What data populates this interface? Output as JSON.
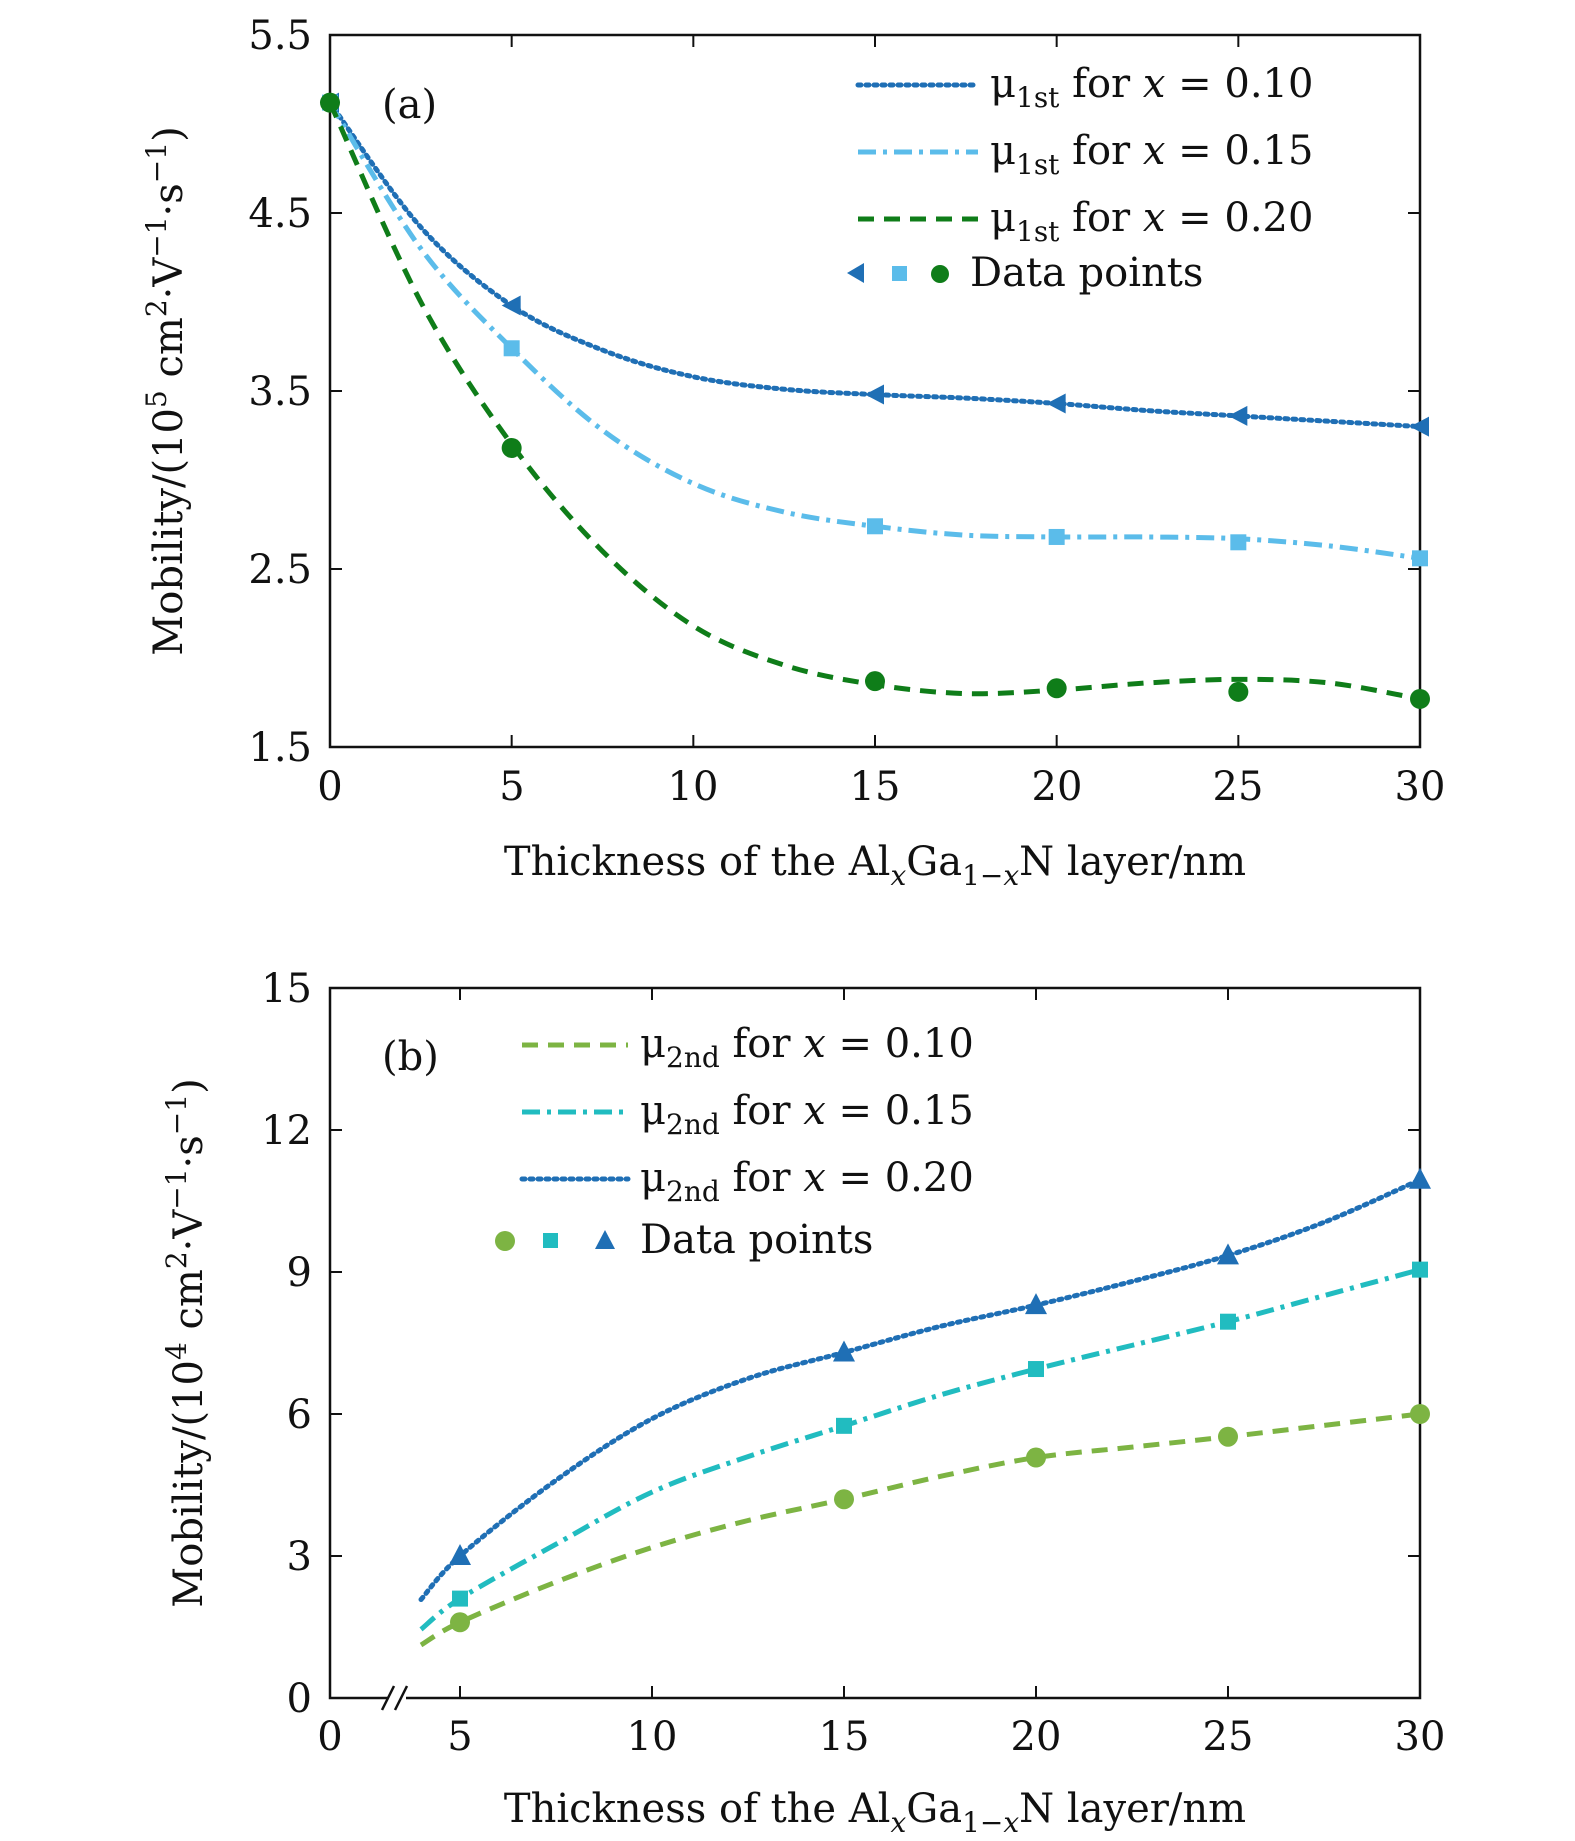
{
  "figure": {
    "colors": {
      "dark_blue": "#1f6fb5",
      "light_blue": "#5bbcea",
      "dark_green": "#0f7d19",
      "olive_green": "#7db443",
      "teal": "#21bcc0",
      "axis": "#111111"
    }
  },
  "chart_data": [
    {
      "type": "line",
      "panel_label": "(a)",
      "xlabel": "Thickness of the AlxGa1−xN layer/nm",
      "ylabel": "Mobility/(105 cm2·V−1·s−1)",
      "xlim": [
        0,
        30
      ],
      "ylim": [
        1.5,
        5.5
      ],
      "xticks": [
        0,
        5,
        10,
        15,
        20,
        25,
        30
      ],
      "xtick_labels": [
        "0",
        "5",
        "10",
        "15",
        "20",
        "25",
        "30"
      ],
      "yticks": [
        1.5,
        2.5,
        3.5,
        4.5,
        5.5
      ],
      "ytick_labels": [
        "1.5",
        "2.5",
        "3.5",
        "4.5",
        "5.5"
      ],
      "grid": false,
      "legend_position": "top-right",
      "legend_marker_label": "Data points",
      "series": [
        {
          "name": "μ1st for x = 0.10",
          "color": "#1f6fb5",
          "line_style": "dotted",
          "marker": "triangle-left",
          "points": [
            [
              0,
              5.12
            ],
            [
              5,
              3.98
            ],
            [
              15,
              3.48
            ],
            [
              20,
              3.43
            ],
            [
              25,
              3.36
            ],
            [
              30,
              3.3
            ]
          ],
          "curve": [
            [
              0,
              5.12
            ],
            [
              2.5,
              4.42
            ],
            [
              5,
              3.98
            ],
            [
              7.5,
              3.73
            ],
            [
              10,
              3.58
            ],
            [
              12.5,
              3.51
            ],
            [
              15,
              3.48
            ],
            [
              17.5,
              3.46
            ],
            [
              20,
              3.43
            ],
            [
              22.5,
              3.39
            ],
            [
              25,
              3.36
            ],
            [
              27.5,
              3.33
            ],
            [
              30,
              3.3
            ]
          ]
        },
        {
          "name": "μ1st for x = 0.15",
          "color": "#5bbcea",
          "line_style": "dash-dot",
          "marker": "square",
          "points": [
            [
              0,
              5.12
            ],
            [
              5,
              3.74
            ],
            [
              15,
              2.74
            ],
            [
              20,
              2.68
            ],
            [
              25,
              2.65
            ],
            [
              30,
              2.56
            ]
          ],
          "curve": [
            [
              0,
              5.12
            ],
            [
              2.5,
              4.3
            ],
            [
              5,
              3.74
            ],
            [
              7.5,
              3.28
            ],
            [
              10,
              2.98
            ],
            [
              12.5,
              2.82
            ],
            [
              15,
              2.74
            ],
            [
              17.5,
              2.69
            ],
            [
              20,
              2.68
            ],
            [
              22.5,
              2.68
            ],
            [
              25,
              2.67
            ],
            [
              27.5,
              2.63
            ],
            [
              30,
              2.56
            ]
          ]
        },
        {
          "name": "μ1st for x = 0.20",
          "color": "#0f7d19",
          "line_style": "dashed",
          "marker": "circle",
          "points": [
            [
              0,
              5.12
            ],
            [
              5,
              3.18
            ],
            [
              15,
              1.87
            ],
            [
              20,
              1.83
            ],
            [
              25,
              1.81
            ],
            [
              30,
              1.77
            ]
          ],
          "curve": [
            [
              0,
              5.12
            ],
            [
              2.5,
              4.0
            ],
            [
              5,
              3.2
            ],
            [
              7.5,
              2.6
            ],
            [
              10,
              2.18
            ],
            [
              12.5,
              1.96
            ],
            [
              15,
              1.85
            ],
            [
              17.5,
              1.8
            ],
            [
              20,
              1.82
            ],
            [
              22.5,
              1.86
            ],
            [
              25,
              1.88
            ],
            [
              27.5,
              1.86
            ],
            [
              30,
              1.77
            ]
          ]
        }
      ]
    },
    {
      "type": "line",
      "panel_label": "(b)",
      "xlabel": "Thickness of the AlxGa1−xN layer/nm",
      "ylabel": "Mobility/(104 cm2·V−1·s−1)",
      "xlim": [
        0,
        30
      ],
      "ylim": [
        0,
        15
      ],
      "axis_break": true,
      "xticks": [
        0,
        5,
        10,
        15,
        20,
        25,
        30
      ],
      "xtick_labels": [
        "0",
        "5",
        "10",
        "15",
        "20",
        "25",
        "30"
      ],
      "yticks": [
        0,
        3,
        6,
        9,
        12,
        15
      ],
      "ytick_labels": [
        "0",
        "3",
        "6",
        "9",
        "12",
        "15"
      ],
      "grid": false,
      "legend_position": "top-left",
      "legend_marker_label": "Data points",
      "series": [
        {
          "name": "μ2nd for x = 0.10",
          "color": "#7db443",
          "line_style": "dashed",
          "marker": "circle",
          "points": [
            [
              5,
              1.6
            ],
            [
              15,
              4.2
            ],
            [
              20,
              5.08
            ],
            [
              25,
              5.52
            ],
            [
              30,
              6.0
            ]
          ],
          "curve": [
            [
              3.5,
              1.12
            ],
            [
              5,
              1.6
            ],
            [
              7.5,
              2.45
            ],
            [
              10,
              3.18
            ],
            [
              12.5,
              3.75
            ],
            [
              15,
              4.2
            ],
            [
              17.5,
              4.68
            ],
            [
              20,
              5.08
            ],
            [
              22.5,
              5.3
            ],
            [
              25,
              5.52
            ],
            [
              27.5,
              5.76
            ],
            [
              30,
              6.0
            ]
          ]
        },
        {
          "name": "μ2nd for x = 0.15",
          "color": "#21bcc0",
          "line_style": "dash-dot",
          "marker": "square",
          "points": [
            [
              5,
              2.1
            ],
            [
              15,
              5.75
            ],
            [
              20,
              6.95
            ],
            [
              25,
              7.95
            ],
            [
              30,
              9.05
            ]
          ],
          "curve": [
            [
              3.5,
              1.45
            ],
            [
              5,
              2.1
            ],
            [
              7.5,
              3.25
            ],
            [
              10,
              4.35
            ],
            [
              12.5,
              5.1
            ],
            [
              15,
              5.75
            ],
            [
              17.5,
              6.4
            ],
            [
              20,
              6.95
            ],
            [
              22.5,
              7.45
            ],
            [
              25,
              7.95
            ],
            [
              27.5,
              8.5
            ],
            [
              30,
              9.05
            ]
          ]
        },
        {
          "name": "μ2nd for x = 0.20",
          "color": "#1f6fb5",
          "line_style": "dotted",
          "marker": "triangle-up",
          "points": [
            [
              5,
              3.0
            ],
            [
              15,
              7.3
            ],
            [
              20,
              8.3
            ],
            [
              25,
              9.35
            ],
            [
              30,
              10.95
            ]
          ],
          "curve": [
            [
              3.5,
              2.08
            ],
            [
              5,
              3.0
            ],
            [
              7.5,
              4.6
            ],
            [
              10,
              5.9
            ],
            [
              12.5,
              6.75
            ],
            [
              15,
              7.3
            ],
            [
              17.5,
              7.85
            ],
            [
              20,
              8.3
            ],
            [
              22.5,
              8.8
            ],
            [
              25,
              9.35
            ],
            [
              27.5,
              10.05
            ],
            [
              30,
              10.95
            ]
          ]
        }
      ]
    }
  ]
}
